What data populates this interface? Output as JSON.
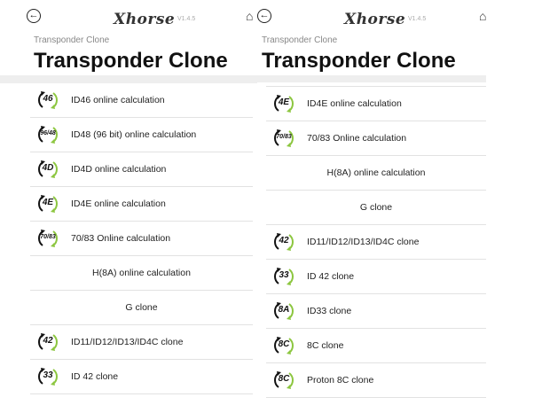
{
  "header": {
    "logo": "Xhorse",
    "version": "V1.4.5",
    "breadcrumb": "Transponder Clone",
    "title": "Transponder Clone",
    "back_icon": "back-arrow-icon",
    "home_icon": "home-icon"
  },
  "colors": {
    "arrow_green": "#8cc63f",
    "arrow_black": "#111111"
  },
  "left_list": [
    {
      "badge": "46",
      "label": "ID46 online calculation"
    },
    {
      "badge": "96/48",
      "label": "ID48 (96 bit) online calculation"
    },
    {
      "badge": "4D",
      "label": "ID4D online calculation"
    },
    {
      "badge": "4E",
      "label": "ID4E online calculation"
    },
    {
      "badge": "70/83",
      "label": "70/83 Online calculation"
    },
    {
      "badge": "",
      "label": "H(8A) online calculation"
    },
    {
      "badge": "",
      "label": "G clone"
    },
    {
      "badge": "42",
      "label": "ID11/ID12/ID13/ID4C clone"
    },
    {
      "badge": "33",
      "label": "ID 42 clone"
    }
  ],
  "right_list": [
    {
      "badge": "4E",
      "label": "ID4E online calculation"
    },
    {
      "badge": "70/83",
      "label": "70/83 Online calculation"
    },
    {
      "badge": "",
      "label": "H(8A) online calculation"
    },
    {
      "badge": "",
      "label": "G clone"
    },
    {
      "badge": "42",
      "label": "ID11/ID12/ID13/ID4C clone"
    },
    {
      "badge": "33",
      "label": "ID 42 clone"
    },
    {
      "badge": "8A",
      "label": "ID33 clone"
    },
    {
      "badge": "8C",
      "label": "8C clone"
    },
    {
      "badge": "8C",
      "label": "Proton 8C clone"
    }
  ]
}
